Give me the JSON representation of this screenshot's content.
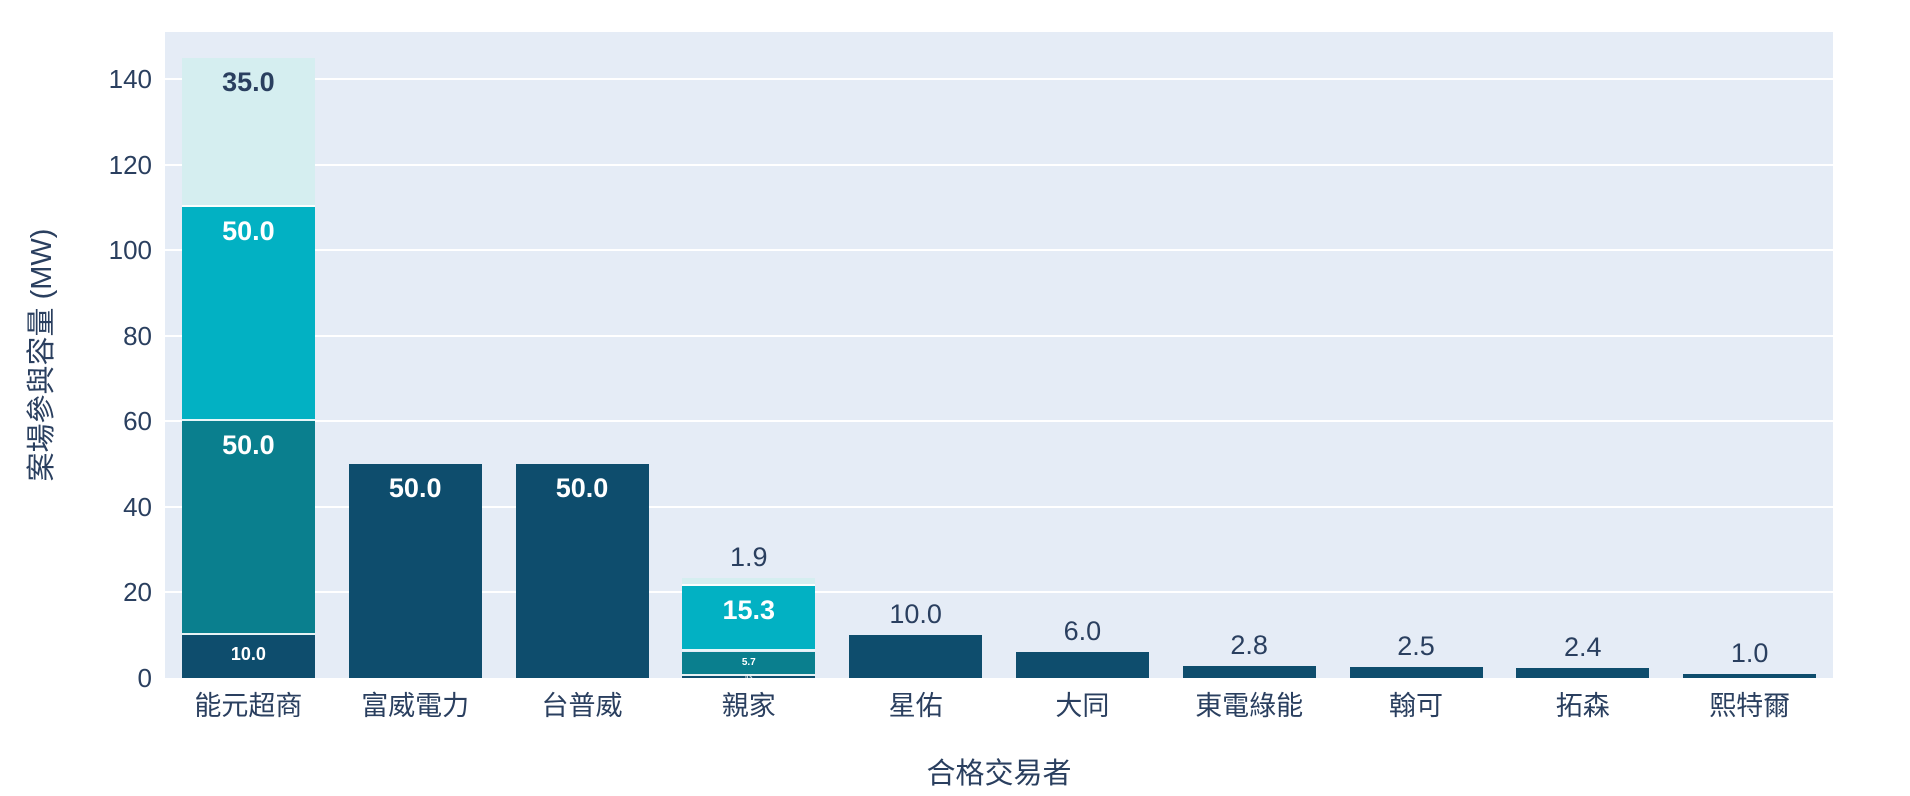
{
  "axes": {
    "x_title": "合格交易者",
    "y_title": "案場參與容量 (MW)"
  },
  "chart_data": {
    "type": "bar",
    "stacked": true,
    "title": "",
    "xlabel": "合格交易者",
    "ylabel": "案場參與容量 (MW)",
    "ylim": [
      0,
      151
    ],
    "yticks": [
      0,
      20,
      40,
      60,
      80,
      100,
      120,
      140
    ],
    "grid": "horizontal-white",
    "legend": "none",
    "plot_bg": "#e5ecf6",
    "categories": [
      "能元超商",
      "富威電力",
      "台普威",
      "親家",
      "星佑",
      "大同",
      "東電綠能",
      "翰可",
      "拓森",
      "熙特爾"
    ],
    "totals": [
      145.0,
      50.0,
      50.0,
      23.4,
      10.0,
      6.0,
      2.8,
      2.5,
      2.4,
      1.0
    ],
    "colors": {
      "navy": "#0e4d6d",
      "dark_teal": "#0a7f8e",
      "teal": "#02b1c3",
      "light_cyan": "#d5eef0",
      "grid": "#ffffff",
      "text": "#2a3f5f",
      "label_on_dark": "#ffffff"
    },
    "bars": [
      {
        "category": "能元超商",
        "segments": [
          {
            "value": 10.0,
            "label": "10.0",
            "color": "navy",
            "label_pos": "inside",
            "label_size": 18
          },
          {
            "value": 50.0,
            "label": "50.0",
            "color": "dark_teal",
            "label_pos": "inside",
            "label_size": 27
          },
          {
            "value": 50.0,
            "label": "50.0",
            "color": "teal",
            "label_pos": "inside",
            "label_size": 27
          },
          {
            "value": 35.0,
            "label": "35.0",
            "color": "light_cyan",
            "label_pos": "inside",
            "label_size": 27
          }
        ]
      },
      {
        "category": "富威電力",
        "segments": [
          {
            "value": 50.0,
            "label": "50.0",
            "color": "navy",
            "label_pos": "inside",
            "label_size": 27
          }
        ]
      },
      {
        "category": "台普威",
        "segments": [
          {
            "value": 50.0,
            "label": "50.0",
            "color": "navy",
            "label_pos": "inside",
            "label_size": 27
          }
        ]
      },
      {
        "category": "親家",
        "segments": [
          {
            "value": 0.5,
            "label": "0.5",
            "color": "navy",
            "label_pos": "inside",
            "label_size": 5
          },
          {
            "value": 5.7,
            "label": "5.7",
            "color": "dark_teal",
            "label_pos": "inside",
            "label_size": 10
          },
          {
            "value": 15.3,
            "label": "15.3",
            "color": "teal",
            "label_pos": "inside",
            "label_size": 27
          },
          {
            "value": 1.9,
            "label": "1.9",
            "color": "light_cyan",
            "label_pos": "outside",
            "label_size": 27
          }
        ]
      },
      {
        "category": "星佑",
        "segments": [
          {
            "value": 10.0,
            "label": "10.0",
            "color": "navy",
            "label_pos": "outside",
            "label_size": 27
          }
        ]
      },
      {
        "category": "大同",
        "segments": [
          {
            "value": 6.0,
            "label": "6.0",
            "color": "navy",
            "label_pos": "outside",
            "label_size": 27
          }
        ]
      },
      {
        "category": "東電綠能",
        "segments": [
          {
            "value": 2.8,
            "label": "2.8",
            "color": "navy",
            "label_pos": "outside",
            "label_size": 27
          }
        ]
      },
      {
        "category": "翰可",
        "segments": [
          {
            "value": 2.5,
            "label": "2.5",
            "color": "navy",
            "label_pos": "outside",
            "label_size": 27
          }
        ]
      },
      {
        "category": "拓森",
        "segments": [
          {
            "value": 2.4,
            "label": "2.4",
            "color": "navy",
            "label_pos": "outside",
            "label_size": 27
          }
        ]
      },
      {
        "category": "熙特爾",
        "segments": [
          {
            "value": 1.0,
            "label": "1.0",
            "color": "navy",
            "label_pos": "outside",
            "label_size": 27
          }
        ]
      }
    ]
  }
}
